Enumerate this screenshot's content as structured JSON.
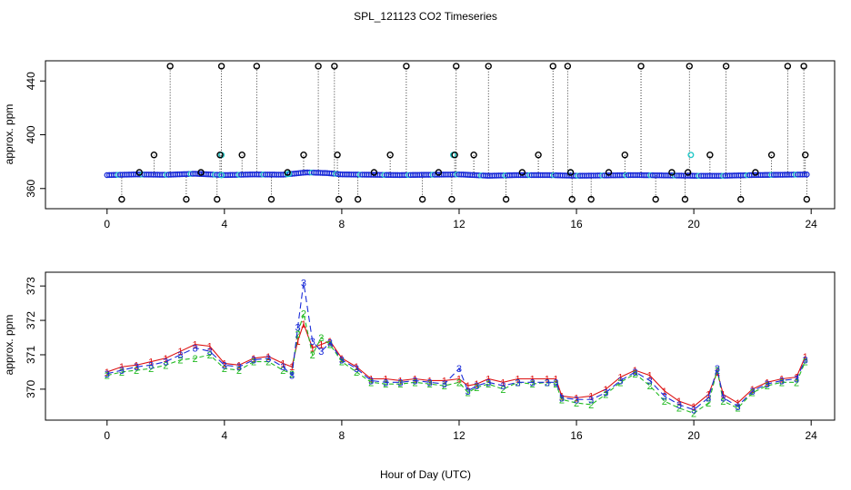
{
  "figure": {
    "title": "SPL_121123  CO2 Timeseries",
    "xlabel": "Hour of Day (UTC)"
  },
  "chart_data": [
    {
      "type": "scatter",
      "title": "SPL_121123  CO2 Timeseries",
      "xlabel": "",
      "ylabel": "approx. ppm",
      "xlim": [
        -2.1,
        24.8
      ],
      "ylim": [
        345,
        455
      ],
      "xticks": [
        0,
        4,
        8,
        12,
        16,
        20,
        24
      ],
      "yticks": [
        360,
        400,
        440
      ],
      "grid": false,
      "colors": {
        "main": "#1a2bd8",
        "accent": "#22c8c8",
        "flag": "#000000"
      },
      "baseline": [
        [
          0.0,
          370.0
        ],
        [
          1.0,
          370.5
        ],
        [
          2.0,
          370.2
        ],
        [
          3.0,
          371.0
        ],
        [
          4.0,
          370.0
        ],
        [
          5.0,
          370.5
        ],
        [
          6.0,
          370.3
        ],
        [
          6.8,
          372.0
        ],
        [
          7.5,
          371.5
        ],
        [
          8.0,
          370.5
        ],
        [
          10.0,
          370.0
        ],
        [
          12.0,
          370.5
        ],
        [
          13.0,
          369.5
        ],
        [
          14.0,
          370.0
        ],
        [
          15.0,
          370.0
        ],
        [
          16.0,
          369.5
        ],
        [
          18.0,
          370.0
        ],
        [
          20.0,
          369.5
        ],
        [
          21.0,
          369.5
        ],
        [
          22.0,
          370.0
        ],
        [
          24.0,
          370.5
        ]
      ],
      "cyan_points": [
        [
          3.9,
          370.0
        ],
        [
          3.9,
          385.0
        ],
        [
          6.2,
          371.0
        ],
        [
          11.8,
          385.0
        ],
        [
          15.8,
          372.0
        ],
        [
          19.9,
          385.0
        ]
      ],
      "flagged_points": [
        [
          0.5,
          352
        ],
        [
          1.1,
          372
        ],
        [
          1.6,
          385
        ],
        [
          2.15,
          451
        ],
        [
          2.7,
          352
        ],
        [
          3.2,
          372
        ],
        [
          3.75,
          352
        ],
        [
          3.85,
          385
        ],
        [
          3.9,
          451
        ],
        [
          4.6,
          385
        ],
        [
          5.1,
          451
        ],
        [
          5.6,
          352
        ],
        [
          6.15,
          372
        ],
        [
          6.7,
          385
        ],
        [
          7.2,
          451
        ],
        [
          7.75,
          451
        ],
        [
          7.85,
          385
        ],
        [
          7.9,
          352
        ],
        [
          8.55,
          352
        ],
        [
          9.1,
          372
        ],
        [
          9.65,
          385
        ],
        [
          10.2,
          451
        ],
        [
          10.75,
          352
        ],
        [
          11.3,
          372
        ],
        [
          11.75,
          352
        ],
        [
          11.85,
          385
        ],
        [
          11.9,
          451
        ],
        [
          12.5,
          385
        ],
        [
          13.0,
          451
        ],
        [
          13.6,
          352
        ],
        [
          14.15,
          372
        ],
        [
          14.7,
          385
        ],
        [
          15.2,
          451
        ],
        [
          15.7,
          451
        ],
        [
          15.8,
          372
        ],
        [
          15.85,
          352
        ],
        [
          16.5,
          352
        ],
        [
          17.1,
          372
        ],
        [
          17.65,
          385
        ],
        [
          18.2,
          451
        ],
        [
          18.7,
          352
        ],
        [
          19.25,
          372
        ],
        [
          19.7,
          352
        ],
        [
          19.8,
          372
        ],
        [
          19.85,
          451
        ],
        [
          20.55,
          385
        ],
        [
          21.1,
          451
        ],
        [
          21.6,
          352
        ],
        [
          22.1,
          372
        ],
        [
          22.65,
          385
        ],
        [
          23.2,
          451
        ],
        [
          23.75,
          451
        ],
        [
          23.8,
          385
        ],
        [
          23.85,
          352
        ]
      ]
    },
    {
      "type": "line",
      "title": "",
      "xlabel": "Hour of Day (UTC)",
      "ylabel": "approx. ppm",
      "xlim": [
        -2.1,
        24.8
      ],
      "ylim": [
        369.1,
        373.4
      ],
      "xticks": [
        0,
        4,
        8,
        12,
        16,
        20,
        24
      ],
      "yticks": [
        370,
        371,
        372,
        373
      ],
      "grid": false,
      "colors": {
        "s1": "#dd1111",
        "s2": "#22bb22",
        "s3": "#1a2bd8"
      },
      "series": [
        {
          "symbol": "1",
          "color": "#dd1111",
          "x": [
            0,
            0.5,
            1,
            1.5,
            2,
            2.5,
            3,
            3.5,
            4,
            4.5,
            5,
            5.5,
            6,
            6.3,
            6.5,
            6.7,
            7,
            7.3,
            7.6,
            8,
            8.5,
            9,
            9.5,
            10,
            10.5,
            11,
            11.5,
            12,
            12.3,
            12.6,
            13,
            13.5,
            14,
            14.5,
            15,
            15.3,
            15.5,
            16,
            16.5,
            17,
            17.5,
            18,
            18.5,
            19,
            19.5,
            20,
            20.5,
            20.8,
            21,
            21.5,
            22,
            22.5,
            23,
            23.5,
            23.8
          ],
          "y": [
            370.5,
            370.65,
            370.7,
            370.8,
            370.9,
            371.1,
            371.3,
            371.25,
            370.75,
            370.7,
            370.9,
            370.95,
            370.75,
            370.65,
            371.4,
            371.9,
            371.2,
            371.3,
            371.4,
            370.9,
            370.65,
            370.3,
            370.3,
            370.25,
            370.3,
            370.25,
            370.25,
            370.3,
            370.1,
            370.15,
            370.3,
            370.2,
            370.3,
            370.3,
            370.3,
            370.3,
            369.8,
            369.75,
            369.8,
            370.0,
            370.35,
            370.55,
            370.4,
            369.95,
            369.65,
            369.5,
            369.85,
            370.5,
            369.85,
            369.6,
            370.0,
            370.2,
            370.3,
            370.35,
            370.95
          ]
        },
        {
          "symbol": "2",
          "color": "#22bb22",
          "x": [
            0,
            0.5,
            1,
            1.5,
            2,
            2.5,
            3,
            3.5,
            4,
            4.5,
            5,
            5.5,
            6,
            6.3,
            6.5,
            6.7,
            7,
            7.3,
            7.6,
            8,
            8.5,
            9,
            9.5,
            10,
            10.5,
            11,
            11.5,
            12,
            12.3,
            12.6,
            13,
            13.5,
            14,
            14.5,
            15,
            15.3,
            15.5,
            16,
            16.5,
            17,
            17.5,
            18,
            18.5,
            19,
            19.5,
            20,
            20.5,
            20.8,
            21,
            21.5,
            22,
            22.5,
            23,
            23.5,
            23.8
          ],
          "y": [
            370.4,
            370.5,
            370.55,
            370.6,
            370.7,
            370.85,
            370.9,
            371.0,
            370.6,
            370.55,
            370.8,
            370.8,
            370.55,
            370.45,
            371.6,
            372.2,
            371.0,
            371.5,
            371.3,
            370.8,
            370.5,
            370.2,
            370.15,
            370.15,
            370.2,
            370.15,
            370.1,
            370.2,
            369.9,
            370.05,
            370.15,
            370.0,
            370.2,
            370.15,
            370.2,
            370.15,
            369.7,
            369.6,
            369.55,
            369.85,
            370.2,
            370.45,
            370.1,
            369.65,
            369.45,
            369.3,
            369.6,
            370.55,
            369.65,
            369.45,
            369.9,
            370.1,
            370.2,
            370.2,
            370.8
          ]
        },
        {
          "symbol": "3",
          "color": "#1a2bd8",
          "x": [
            0,
            0.5,
            1,
            1.5,
            2,
            2.5,
            3,
            3.5,
            4,
            4.5,
            5,
            5.5,
            6,
            6.3,
            6.5,
            6.7,
            7,
            7.3,
            7.6,
            8,
            8.5,
            9,
            9.5,
            10,
            10.5,
            11,
            11.5,
            12,
            12.3,
            12.6,
            13,
            13.5,
            14,
            14.5,
            15,
            15.3,
            15.5,
            16,
            16.5,
            17,
            17.5,
            18,
            18.5,
            19,
            19.5,
            20,
            20.5,
            20.8,
            21,
            21.5,
            22,
            22.5,
            23,
            23.5,
            23.8
          ],
          "y": [
            370.45,
            370.55,
            370.65,
            370.7,
            370.8,
            371.0,
            371.2,
            371.1,
            370.7,
            370.65,
            370.85,
            370.9,
            370.65,
            370.4,
            371.8,
            373.1,
            371.4,
            371.1,
            371.35,
            370.85,
            370.6,
            370.25,
            370.2,
            370.2,
            370.25,
            370.2,
            370.15,
            370.6,
            369.95,
            370.1,
            370.2,
            370.1,
            370.2,
            370.2,
            370.2,
            370.2,
            369.75,
            369.7,
            369.7,
            369.9,
            370.25,
            370.5,
            370.25,
            369.8,
            369.55,
            369.4,
            369.75,
            370.6,
            369.75,
            369.5,
            369.95,
            370.15,
            370.25,
            370.3,
            370.85
          ]
        }
      ]
    }
  ]
}
